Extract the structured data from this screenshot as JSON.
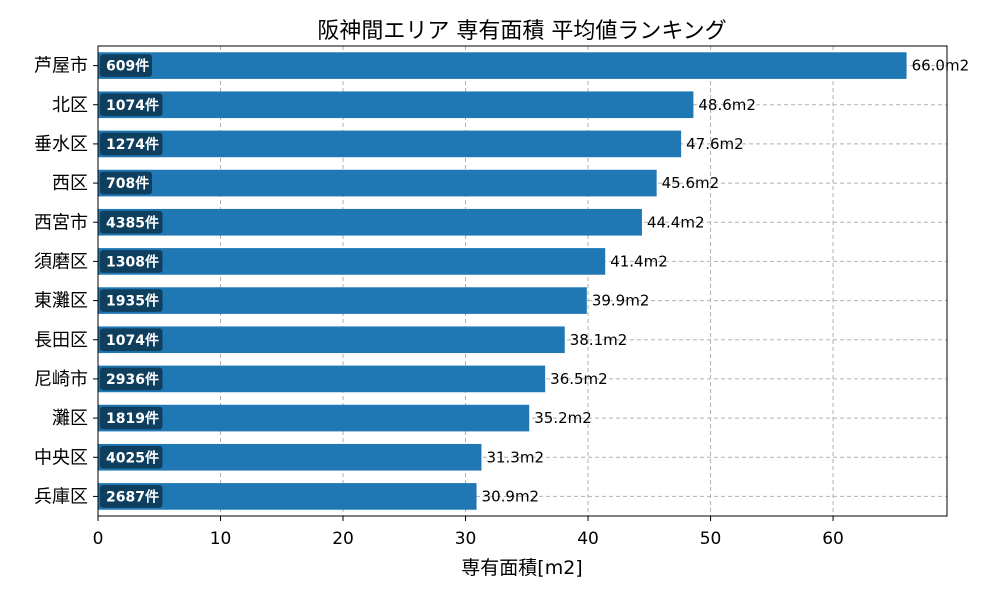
{
  "chart_data": {
    "type": "bar",
    "orientation": "horizontal",
    "title": "阪神間エリア 専有面積 平均値ランキング",
    "xlabel": "専有面積[m2]",
    "ylabel": "",
    "xlim": [
      0,
      69.3
    ],
    "xticks": [
      0,
      10,
      20,
      30,
      40,
      50,
      60
    ],
    "grid": true,
    "value_suffix": "m2",
    "count_suffix": "件",
    "bar_color": "#1f77b4",
    "count_badge_color": "#0d3550",
    "categories": [
      "芦屋市",
      "北区",
      "垂水区",
      "西区",
      "西宮市",
      "須磨区",
      "東灘区",
      "長田区",
      "尼崎市",
      "灘区",
      "中央区",
      "兵庫区"
    ],
    "values": [
      66.0,
      48.6,
      47.6,
      45.6,
      44.4,
      41.4,
      39.9,
      38.1,
      36.5,
      35.2,
      31.3,
      30.9
    ],
    "value_labels": [
      "66.0m2",
      "48.6m2",
      "47.6m2",
      "45.6m2",
      "44.4m2",
      "41.4m2",
      "39.9m2",
      "38.1m2",
      "36.5m2",
      "35.2m2",
      "31.3m2",
      "30.9m2"
    ],
    "counts": [
      609,
      1074,
      1274,
      708,
      4385,
      1308,
      1935,
      1074,
      2936,
      1819,
      4025,
      2687
    ],
    "count_labels": [
      "609件",
      "1074件",
      "1274件",
      "708件",
      "4385件",
      "1308件",
      "1935件",
      "1074件",
      "2936件",
      "1819件",
      "4025件",
      "2687件"
    ]
  }
}
